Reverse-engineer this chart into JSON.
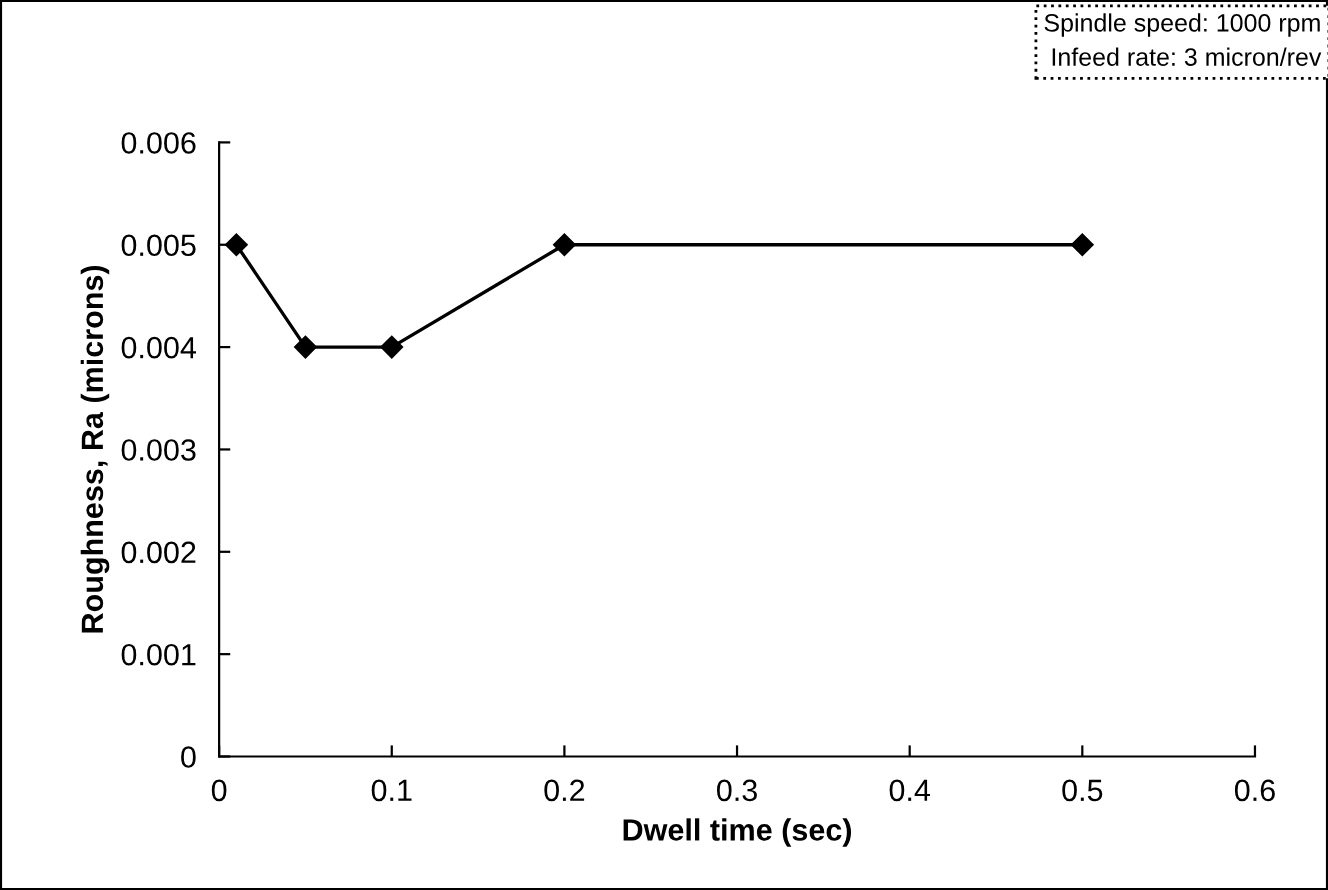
{
  "chart_data": {
    "type": "line",
    "xlabel": "Dwell time (sec)",
    "ylabel": "Roughness, Ra (microns)",
    "x": [
      0.01,
      0.05,
      0.1,
      0.2,
      0.5
    ],
    "series": [
      {
        "color": "#000000",
        "values": [
          0.005,
          0.004,
          0.004,
          0.005,
          0.005
        ]
      }
    ],
    "xlim": [
      0,
      0.6
    ],
    "xticks": [
      0,
      0.1,
      0.2,
      0.3,
      0.4,
      0.5,
      0.6
    ],
    "ylim": [
      0,
      0.006
    ],
    "yticks": [
      0,
      0.001,
      0.002,
      0.003,
      0.004,
      0.005,
      0.006
    ],
    "marker": "diamond",
    "line_style": "solid",
    "grid": false,
    "legend": false,
    "annotations": [
      "Spindle speed: 1000 rpm",
      "Infeed rate: 3 micron/rev"
    ]
  }
}
